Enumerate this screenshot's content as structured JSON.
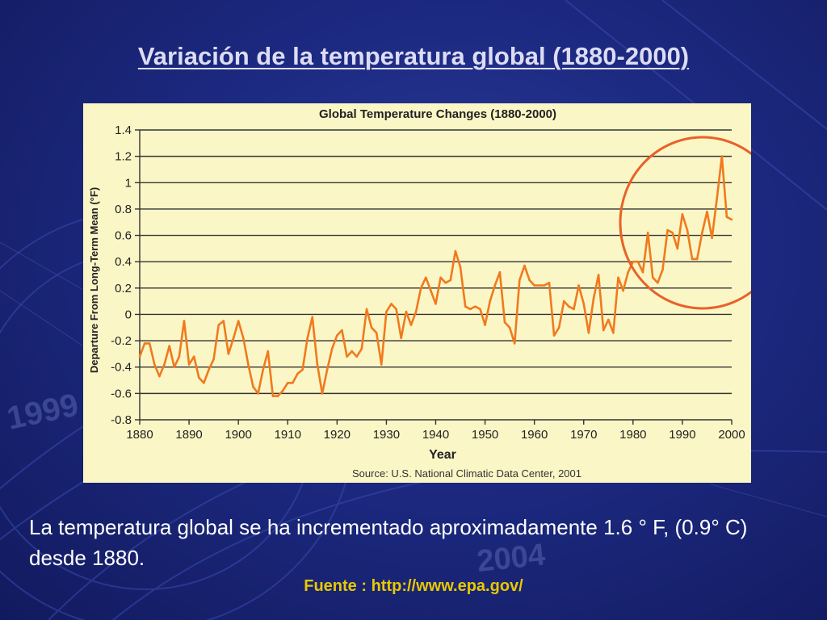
{
  "slide": {
    "title": "Variación de la temperatura global (1880-2000)",
    "caption": "La temperatura global se ha incrementado aproximadamente 1.6 ° F, (0.9° C) desde 1880.",
    "source_link": "Fuente : http://www.epa.gov/",
    "background_years": [
      "1999",
      "2004"
    ]
  },
  "colors": {
    "background": "#1c2980",
    "title": "#dcdcf4",
    "chart_panel": "#fbf6c6",
    "line": "#f07a1e",
    "highlight_circle": "#e8622a",
    "source_link": "#e8c800"
  },
  "chart_data": {
    "type": "line",
    "title": "Global Temperature Changes (1880-2000)",
    "xlabel": "Year",
    "ylabel": "Departure From Long-Term Mean (°F)",
    "source_note": "Source: U.S. National Climatic Data Center, 2001",
    "xlim": [
      1880,
      2000
    ],
    "ylim": [
      -0.8,
      1.4
    ],
    "x_ticks": [
      1880,
      1890,
      1900,
      1910,
      1920,
      1930,
      1940,
      1950,
      1960,
      1970,
      1980,
      1990,
      2000
    ],
    "y_ticks": [
      -0.8,
      -0.6,
      -0.4,
      -0.2,
      0,
      0.2,
      0.4,
      0.6,
      0.8,
      1,
      1.2,
      1.4
    ],
    "y_tick_labels": [
      "-0.8",
      "-0.6",
      "-0.4",
      "-0.2",
      "0",
      "0.2",
      "0.4",
      "0.6",
      "0.8",
      "1",
      "1.2",
      "1.4"
    ],
    "grid": "horizontal",
    "annotation": "circle highlighting 1980-2000",
    "highlight_range": [
      1980,
      2000
    ],
    "series": [
      {
        "x": [
          1880,
          1881,
          1882,
          1883,
          1884,
          1885,
          1886,
          1887,
          1888,
          1889,
          1890,
          1891,
          1892,
          1893,
          1894,
          1895,
          1896,
          1897,
          1898,
          1899,
          1900,
          1901,
          1902,
          1903,
          1904,
          1905,
          1906,
          1907,
          1908,
          1909,
          1910,
          1911,
          1912,
          1913,
          1914,
          1915,
          1916,
          1917,
          1918,
          1919,
          1920,
          1921,
          1922,
          1923,
          1924,
          1925,
          1926,
          1927,
          1928,
          1929,
          1930,
          1931,
          1932,
          1933,
          1934,
          1935,
          1936,
          1937,
          1938,
          1939,
          1940,
          1941,
          1942,
          1943,
          1944,
          1945,
          1946,
          1947,
          1948,
          1949,
          1950,
          1951,
          1952,
          1953,
          1954,
          1955,
          1956,
          1957,
          1958,
          1959,
          1960,
          1961,
          1962,
          1963,
          1964,
          1965,
          1966,
          1967,
          1968,
          1969,
          1970,
          1971,
          1972,
          1973,
          1974,
          1975,
          1976,
          1977,
          1978,
          1979,
          1980,
          1981,
          1982,
          1983,
          1984,
          1985,
          1986,
          1987,
          1988,
          1989,
          1990,
          1991,
          1992,
          1993,
          1994,
          1995,
          1996,
          1997,
          1998,
          1999,
          2000
        ],
        "y": [
          -0.32,
          -0.22,
          -0.22,
          -0.38,
          -0.47,
          -0.38,
          -0.24,
          -0.4,
          -0.32,
          -0.05,
          -0.38,
          -0.32,
          -0.48,
          -0.52,
          -0.42,
          -0.34,
          -0.08,
          -0.05,
          -0.3,
          -0.18,
          -0.05,
          -0.18,
          -0.38,
          -0.55,
          -0.6,
          -0.42,
          -0.28,
          -0.62,
          -0.62,
          -0.58,
          -0.52,
          -0.52,
          -0.45,
          -0.42,
          -0.18,
          -0.02,
          -0.38,
          -0.6,
          -0.42,
          -0.26,
          -0.16,
          -0.12,
          -0.32,
          -0.28,
          -0.32,
          -0.26,
          0.04,
          -0.1,
          -0.14,
          -0.38,
          0.02,
          0.08,
          0.04,
          -0.18,
          0.02,
          -0.08,
          0.02,
          0.2,
          0.28,
          0.18,
          0.08,
          0.28,
          0.24,
          0.26,
          0.48,
          0.36,
          0.06,
          0.04,
          0.06,
          0.04,
          -0.08,
          0.1,
          0.22,
          0.32,
          -0.06,
          -0.1,
          -0.22,
          0.26,
          0.37,
          0.26,
          0.22,
          0.22,
          0.22,
          0.24,
          -0.16,
          -0.1,
          0.1,
          0.06,
          0.04,
          0.22,
          0.08,
          -0.14,
          0.12,
          0.3,
          -0.12,
          -0.04,
          -0.14,
          0.28,
          0.18,
          0.32,
          0.4,
          0.4,
          0.32,
          0.62,
          0.28,
          0.24,
          0.34,
          0.64,
          0.62,
          0.5,
          0.76,
          0.64,
          0.42,
          0.42,
          0.62,
          0.78,
          0.58,
          0.88,
          1.2,
          0.74,
          0.72
        ]
      }
    ]
  }
}
